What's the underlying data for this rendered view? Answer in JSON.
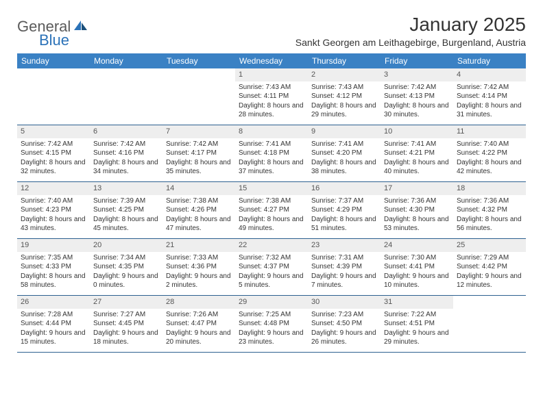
{
  "logo": {
    "text1": "General",
    "text2": "Blue"
  },
  "title": "January 2025",
  "location": "Sankt Georgen am Leithagebirge, Burgenland, Austria",
  "colors": {
    "header_bg": "#3a81c4",
    "header_text": "#ffffff",
    "daynum_bg": "#eeeeee",
    "border": "#2b5f8f",
    "body_text": "#333333",
    "logo_gray": "#5a5a5a",
    "logo_blue": "#2b72b8"
  },
  "day_names": [
    "Sunday",
    "Monday",
    "Tuesday",
    "Wednesday",
    "Thursday",
    "Friday",
    "Saturday"
  ],
  "weeks": [
    [
      {
        "n": "",
        "empty": true
      },
      {
        "n": "",
        "empty": true
      },
      {
        "n": "",
        "empty": true
      },
      {
        "n": "1",
        "sr": "7:43 AM",
        "ss": "4:11 PM",
        "dh": "8",
        "dm": "28"
      },
      {
        "n": "2",
        "sr": "7:43 AM",
        "ss": "4:12 PM",
        "dh": "8",
        "dm": "29"
      },
      {
        "n": "3",
        "sr": "7:42 AM",
        "ss": "4:13 PM",
        "dh": "8",
        "dm": "30"
      },
      {
        "n": "4",
        "sr": "7:42 AM",
        "ss": "4:14 PM",
        "dh": "8",
        "dm": "31"
      }
    ],
    [
      {
        "n": "5",
        "sr": "7:42 AM",
        "ss": "4:15 PM",
        "dh": "8",
        "dm": "32"
      },
      {
        "n": "6",
        "sr": "7:42 AM",
        "ss": "4:16 PM",
        "dh": "8",
        "dm": "34"
      },
      {
        "n": "7",
        "sr": "7:42 AM",
        "ss": "4:17 PM",
        "dh": "8",
        "dm": "35"
      },
      {
        "n": "8",
        "sr": "7:41 AM",
        "ss": "4:18 PM",
        "dh": "8",
        "dm": "37"
      },
      {
        "n": "9",
        "sr": "7:41 AM",
        "ss": "4:20 PM",
        "dh": "8",
        "dm": "38"
      },
      {
        "n": "10",
        "sr": "7:41 AM",
        "ss": "4:21 PM",
        "dh": "8",
        "dm": "40"
      },
      {
        "n": "11",
        "sr": "7:40 AM",
        "ss": "4:22 PM",
        "dh": "8",
        "dm": "42"
      }
    ],
    [
      {
        "n": "12",
        "sr": "7:40 AM",
        "ss": "4:23 PM",
        "dh": "8",
        "dm": "43"
      },
      {
        "n": "13",
        "sr": "7:39 AM",
        "ss": "4:25 PM",
        "dh": "8",
        "dm": "45"
      },
      {
        "n": "14",
        "sr": "7:38 AM",
        "ss": "4:26 PM",
        "dh": "8",
        "dm": "47"
      },
      {
        "n": "15",
        "sr": "7:38 AM",
        "ss": "4:27 PM",
        "dh": "8",
        "dm": "49"
      },
      {
        "n": "16",
        "sr": "7:37 AM",
        "ss": "4:29 PM",
        "dh": "8",
        "dm": "51"
      },
      {
        "n": "17",
        "sr": "7:36 AM",
        "ss": "4:30 PM",
        "dh": "8",
        "dm": "53"
      },
      {
        "n": "18",
        "sr": "7:36 AM",
        "ss": "4:32 PM",
        "dh": "8",
        "dm": "56"
      }
    ],
    [
      {
        "n": "19",
        "sr": "7:35 AM",
        "ss": "4:33 PM",
        "dh": "8",
        "dm": "58"
      },
      {
        "n": "20",
        "sr": "7:34 AM",
        "ss": "4:35 PM",
        "dh": "9",
        "dm": "0"
      },
      {
        "n": "21",
        "sr": "7:33 AM",
        "ss": "4:36 PM",
        "dh": "9",
        "dm": "2"
      },
      {
        "n": "22",
        "sr": "7:32 AM",
        "ss": "4:37 PM",
        "dh": "9",
        "dm": "5"
      },
      {
        "n": "23",
        "sr": "7:31 AM",
        "ss": "4:39 PM",
        "dh": "9",
        "dm": "7"
      },
      {
        "n": "24",
        "sr": "7:30 AM",
        "ss": "4:41 PM",
        "dh": "9",
        "dm": "10"
      },
      {
        "n": "25",
        "sr": "7:29 AM",
        "ss": "4:42 PM",
        "dh": "9",
        "dm": "12"
      }
    ],
    [
      {
        "n": "26",
        "sr": "7:28 AM",
        "ss": "4:44 PM",
        "dh": "9",
        "dm": "15"
      },
      {
        "n": "27",
        "sr": "7:27 AM",
        "ss": "4:45 PM",
        "dh": "9",
        "dm": "18"
      },
      {
        "n": "28",
        "sr": "7:26 AM",
        "ss": "4:47 PM",
        "dh": "9",
        "dm": "20"
      },
      {
        "n": "29",
        "sr": "7:25 AM",
        "ss": "4:48 PM",
        "dh": "9",
        "dm": "23"
      },
      {
        "n": "30",
        "sr": "7:23 AM",
        "ss": "4:50 PM",
        "dh": "9",
        "dm": "26"
      },
      {
        "n": "31",
        "sr": "7:22 AM",
        "ss": "4:51 PM",
        "dh": "9",
        "dm": "29"
      },
      {
        "n": "",
        "empty": true
      }
    ]
  ]
}
